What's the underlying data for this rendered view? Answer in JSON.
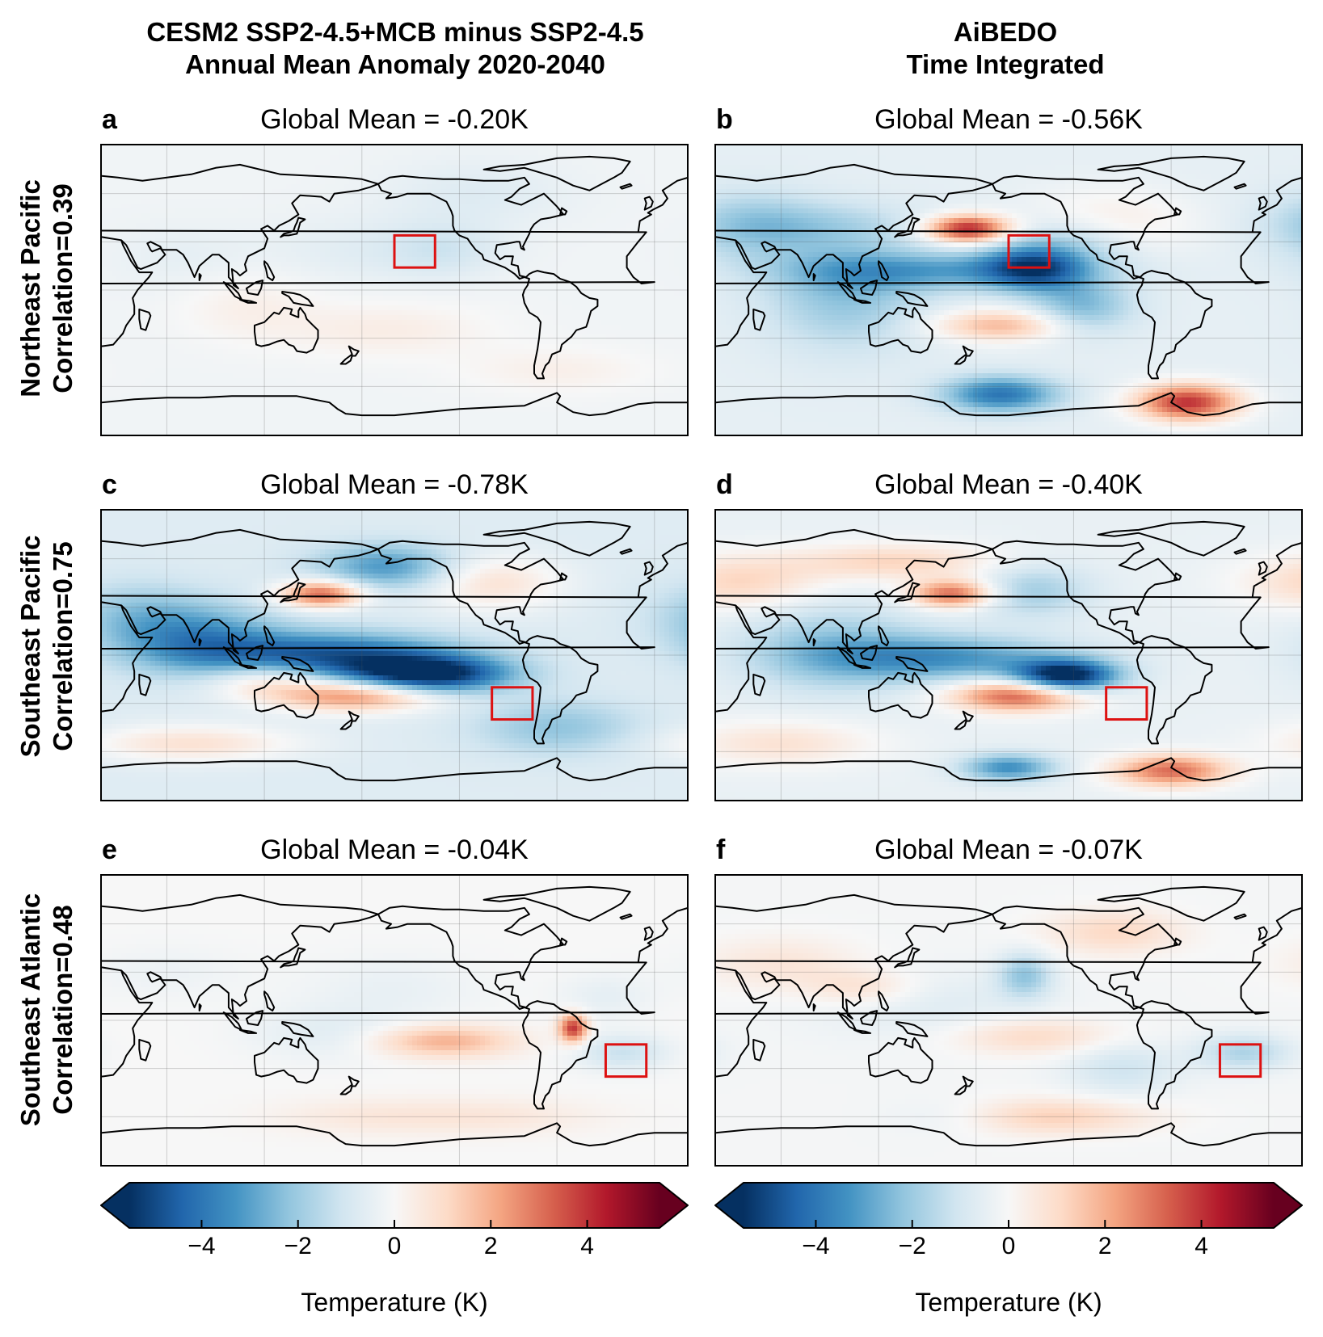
{
  "columns": [
    {
      "title_line1": "CESM2 SSP2-4.5+MCB minus SSP2-4.5",
      "title_line2": "Annual Mean Anomaly 2020-2040"
    },
    {
      "title_line1": "AiBEDO",
      "title_line2": "Time Integrated"
    }
  ],
  "rows": [
    {
      "label_line1": "Northeast Pacific",
      "label_line2": "Correlation=0.39"
    },
    {
      "label_line1": "Southeast Pacific",
      "label_line2": "Correlation=0.75"
    },
    {
      "label_line1": "Southeast Atlantic",
      "label_line2": "Correlation=0.48"
    }
  ],
  "panels": [
    {
      "letter": "a",
      "title": "Global Mean = -0.20K",
      "global_mean_K": -0.2,
      "region": "Northeast Pacific"
    },
    {
      "letter": "b",
      "title": "Global Mean = -0.56K",
      "global_mean_K": -0.56,
      "region": "Northeast Pacific"
    },
    {
      "letter": "c",
      "title": "Global Mean = -0.78K",
      "global_mean_K": -0.78,
      "region": "Southeast Pacific"
    },
    {
      "letter": "d",
      "title": "Global Mean = -0.40K",
      "global_mean_K": -0.4,
      "region": "Southeast Pacific"
    },
    {
      "letter": "e",
      "title": "Global Mean = -0.04K",
      "global_mean_K": -0.04,
      "region": "Southeast Atlantic"
    },
    {
      "letter": "f",
      "title": "Global Mean = -0.07K",
      "global_mean_K": -0.07,
      "region": "Southeast Atlantic"
    }
  ],
  "colorbar": {
    "label": "Temperature (K)",
    "ticks": [
      "−4",
      "−2",
      "0",
      "2",
      "4"
    ],
    "tick_values": [
      -4,
      -2,
      0,
      2,
      4
    ],
    "range": [
      -5.5,
      5.5
    ],
    "colormap": "RdBu_r",
    "colors": [
      "#053061",
      "#2166ac",
      "#4393c3",
      "#92c5de",
      "#d1e5f0",
      "#f7f7f7",
      "#fddbc7",
      "#f4a582",
      "#d6604d",
      "#b2182b",
      "#67001f"
    ]
  },
  "colors": {
    "box": "#dd1111",
    "coast": "#000000"
  }
}
